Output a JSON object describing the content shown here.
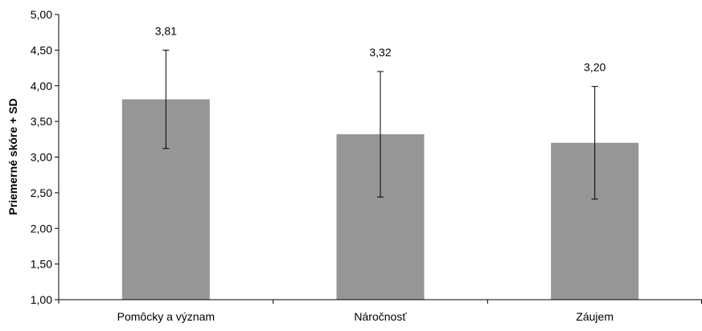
{
  "chart_data": {
    "type": "bar",
    "title": "",
    "xlabel": "",
    "ylabel": "Priemerné skóre + SD",
    "ylim": [
      1.0,
      5.0
    ],
    "ytick_values": [
      1.0,
      1.5,
      2.0,
      2.5,
      3.0,
      3.5,
      4.0,
      4.5,
      5.0
    ],
    "ytick_labels": [
      "1,00",
      "1,50",
      "2,00",
      "2,50",
      "3,00",
      "3,50",
      "4,00",
      "4,50",
      "5,00"
    ],
    "categories": [
      "Pomôcky a význam",
      "Náročnosť",
      "Záujem"
    ],
    "values": [
      3.81,
      3.32,
      3.2
    ],
    "value_labels": [
      "3,81",
      "3,32",
      "3,20"
    ],
    "error_low": [
      3.12,
      2.44,
      2.41
    ],
    "error_high": [
      4.5,
      4.2,
      3.99
    ],
    "grid": false,
    "legend": "none",
    "colors": {
      "bar": "#969696",
      "axis": "#000000",
      "errorbar": "#000000",
      "background": "#ffffff"
    }
  }
}
